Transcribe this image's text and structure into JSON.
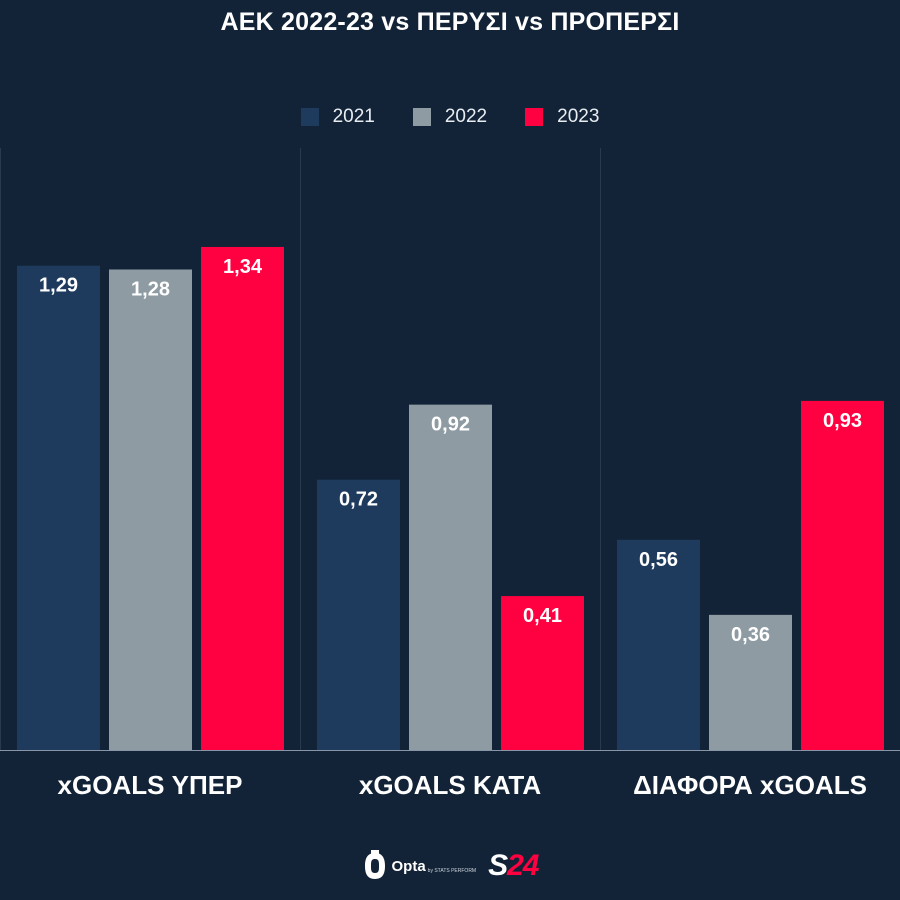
{
  "title": "ΑΕΚ 2022-23 vs ΠΕΡΥΣΙ vs ΠΡΟΠΕΡΣΙ",
  "colors": {
    "background": "#122337",
    "series_2021": "#1e3b5e",
    "series_2022": "#8e9ba3",
    "series_2023": "#ff0040",
    "divider": "#2a3a4e",
    "baseline": "#8795a6"
  },
  "footer": {
    "opta_label": "Opta",
    "opta_sub": "by STATS PERFORM",
    "s24_s": "S",
    "s24_num": "24"
  },
  "chart_data": {
    "type": "bar",
    "title": "ΑΕΚ 2022-23 vs ΠΕΡΥΣΙ vs ΠΡΟΠΕΡΣΙ",
    "categories": [
      "xGOALS ΥΠΕΡ",
      "xGOALS ΚΑΤΑ",
      "ΔΙΑΦΟΡΑ xGOALS"
    ],
    "series": [
      {
        "name": "2021",
        "values": [
          1.29,
          0.72,
          0.56
        ],
        "labels": [
          "1,29",
          "0,72",
          "0,56"
        ]
      },
      {
        "name": "2022",
        "values": [
          1.28,
          0.92,
          0.36
        ],
        "labels": [
          "1,28",
          "0,92",
          "0,36"
        ]
      },
      {
        "name": "2023",
        "values": [
          1.34,
          0.41,
          0.93
        ],
        "labels": [
          "1,34",
          "0,41",
          "0,93"
        ]
      }
    ],
    "ylim": [
      0,
      1.34
    ],
    "legend_position": "top-center",
    "grid": false
  }
}
